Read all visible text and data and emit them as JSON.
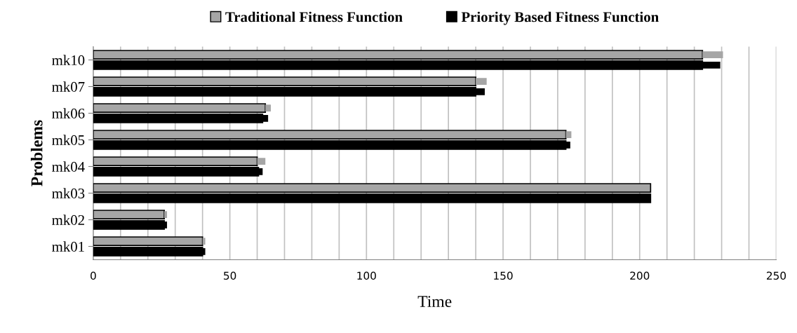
{
  "chart_data": {
    "type": "bar",
    "orientation": "horizontal",
    "xlabel": "Time",
    "ylabel": "Problems",
    "categories": [
      "mk10",
      "mk07",
      "mk06",
      "mk05",
      "mk04",
      "mk03",
      "mk02",
      "mk01"
    ],
    "series": [
      {
        "name": "Traditional Fitness Function",
        "color": "#a6a6a6",
        "values": [
          223,
          140,
          63,
          173,
          60,
          204,
          26,
          40
        ],
        "errors": [
          [
            223,
            230.5
          ],
          [
            140,
            144
          ],
          [
            63,
            65
          ],
          [
            173,
            175
          ],
          [
            60,
            63
          ],
          null,
          [
            26,
            27
          ],
          [
            40,
            41
          ]
        ]
      },
      {
        "name": "Priority Based Fitness Function",
        "color": "#000000",
        "values": [
          223,
          140,
          62,
          173,
          60.5,
          204,
          26,
          40
        ],
        "errors": [
          [
            223,
            229.5
          ],
          [
            140,
            143.3
          ],
          [
            62,
            64
          ],
          [
            173,
            174.6
          ],
          [
            60.5,
            62
          ],
          null,
          [
            26,
            27
          ],
          [
            40,
            41
          ]
        ]
      }
    ],
    "xlim": [
      0,
      250
    ],
    "xticks": [
      0,
      {
        "value": 10,
        "label": null
      },
      {
        "value": 20,
        "label": null
      },
      {
        "value": 30,
        "label": null
      },
      {
        "value": 40,
        "label": null
      },
      50,
      {
        "value": 60,
        "label": null
      },
      {
        "value": 70,
        "label": null
      },
      {
        "value": 80,
        "label": null
      },
      {
        "value": 90,
        "label": null
      },
      100,
      {
        "value": 110,
        "label": null
      },
      {
        "value": 120,
        "label": null
      },
      {
        "value": 130,
        "label": null
      },
      {
        "value": 140,
        "label": null
      },
      150,
      {
        "value": 160,
        "label": null
      },
      {
        "value": 170,
        "label": null
      },
      {
        "value": 180,
        "label": null
      },
      {
        "value": 190,
        "label": null
      },
      200,
      {
        "value": 210,
        "label": null
      },
      {
        "value": 220,
        "label": null
      },
      {
        "value": 230,
        "label": null
      },
      {
        "value": 240,
        "label": null
      },
      250
    ],
    "grid": "x",
    "legend": "top"
  }
}
